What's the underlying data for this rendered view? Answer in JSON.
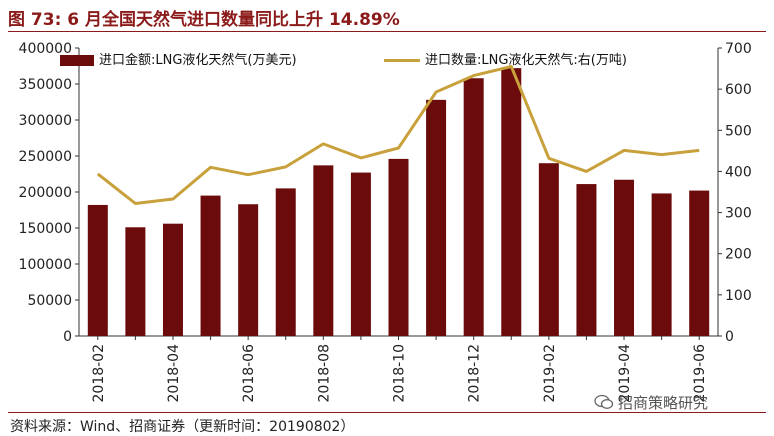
{
  "title": "图 73:  6 月全国天然气进口数量同比上升 14.89%",
  "source": "资料来源：Wind、招商证券（更新时间：20190802）",
  "watermark": "招商策略研究",
  "colors": {
    "bar": "#6b0b0b",
    "line": "#c8a13c",
    "title": "#8b1a1a"
  },
  "chart_data": {
    "type": "bar+line",
    "categories": [
      "2018-02",
      "2018-03",
      "2018-04",
      "2018-05",
      "2018-06",
      "2018-07",
      "2018-08",
      "2018-09",
      "2018-10",
      "2018-11",
      "2018-12",
      "2019-01",
      "2019-02",
      "2019-03",
      "2019-04",
      "2019-05",
      "2019-06"
    ],
    "tick_labels": [
      "2018-02",
      "2018-04",
      "2018-06",
      "2018-08",
      "2018-10",
      "2018-12",
      "2019-02",
      "2019-04",
      "2019-06"
    ],
    "series": [
      {
        "name": "进口金额:LNG液化天然气(万美元)",
        "type": "bar",
        "axis": "left",
        "values": [
          182000,
          151000,
          156000,
          195000,
          183000,
          205000,
          237000,
          227000,
          246000,
          328000,
          358000,
          372000,
          240000,
          211000,
          217000,
          198000,
          202000
        ]
      },
      {
        "name": "进口数量:LNG液化天然气:右(万吨)",
        "type": "line",
        "axis": "right",
        "values": [
          394,
          322,
          333,
          410,
          392,
          411,
          467,
          433,
          457,
          593,
          633,
          655,
          432,
          400,
          451,
          441,
          451
        ]
      }
    ],
    "y_left": {
      "min": 0,
      "max": 400000,
      "ticks": [
        "0",
        "50000",
        "100000",
        "150000",
        "200000",
        "250000",
        "300000",
        "350000",
        "400000"
      ]
    },
    "y_right": {
      "min": 0,
      "max": 700,
      "ticks": [
        "0",
        "100",
        "200",
        "300",
        "400",
        "500",
        "600",
        "700"
      ]
    }
  }
}
